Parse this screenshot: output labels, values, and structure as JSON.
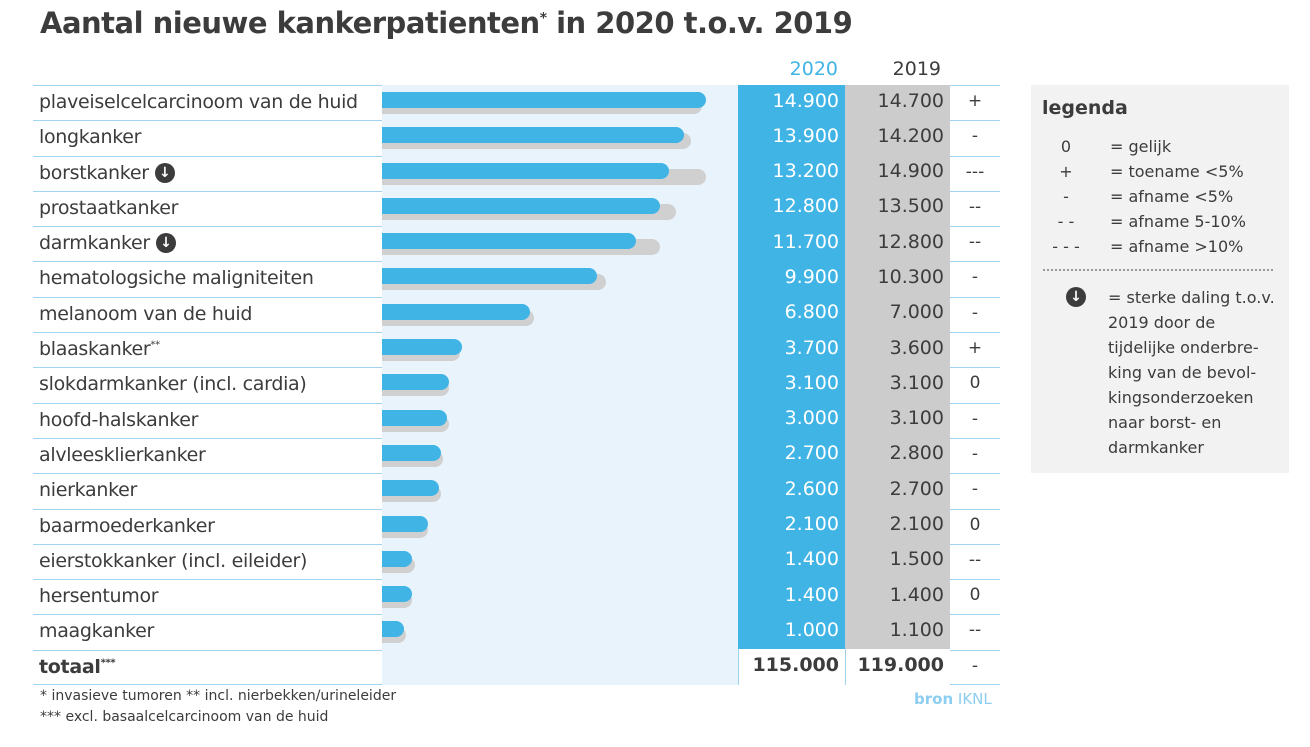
{
  "title": "Aantal nieuwe kankerpatienten",
  "title_sup": "*",
  "title_rest": " in 2020 t.o.v. 2019",
  "colors": {
    "bar_2020": "#41b4e6",
    "bar_2019": "#d0d0d0",
    "col_2019": "#cccccc",
    "bar_bg": "#e8f3fc"
  },
  "chart_data": {
    "type": "bar",
    "orientation": "horizontal",
    "series_names": [
      "2020",
      "2019"
    ],
    "categories": [
      "plaveiselcelcarcinoom van de huid",
      "longkanker",
      "borstkanker",
      "prostaatkanker",
      "darmkanker",
      "hematologsiche maligniteiten",
      "melanoom van de huid",
      "blaaskanker",
      "slokdarmkanker (incl. cardia)",
      "hoofd-halskanker",
      "alvleesklierkanker",
      "nierkanker",
      "baarmoederkanker",
      "eierstokkanker (incl. eileider)",
      "hersentumor",
      "maagkanker"
    ],
    "category_sup": [
      "",
      "",
      "",
      "",
      "",
      "",
      "",
      "**",
      "",
      "",
      "",
      "",
      "",
      "",
      "",
      ""
    ],
    "strong_decline": [
      false,
      false,
      true,
      false,
      true,
      false,
      false,
      false,
      false,
      false,
      false,
      false,
      false,
      false,
      false,
      false
    ],
    "values_2020": [
      14900,
      13900,
      13200,
      12800,
      11700,
      9900,
      6800,
      3700,
      3100,
      3000,
      2700,
      2600,
      2100,
      1400,
      1400,
      1000
    ],
    "values_2019": [
      14700,
      14200,
      14900,
      13500,
      12800,
      10300,
      7000,
      3600,
      3100,
      3100,
      2800,
      2700,
      2100,
      1500,
      1400,
      1100
    ],
    "labels_2020": [
      "14.900",
      "13.900",
      "13.200",
      "12.800",
      "11.700",
      "9.900",
      "6.800",
      "3.700",
      "3.100",
      "3.000",
      "2.700",
      "2.600",
      "2.100",
      "1.400",
      "1.400",
      "1.000"
    ],
    "labels_2019": [
      "14.700",
      "14.200",
      "14.900",
      "13.500",
      "12.800",
      "10.300",
      "7.000",
      "3.600",
      "3.100",
      "3.100",
      "2.800",
      "2.700",
      "2.100",
      "1.500",
      "1.400",
      "1.100"
    ],
    "trend": [
      "+",
      "-",
      "---",
      "--",
      "--",
      "-",
      "-",
      "+",
      "0",
      "-",
      "-",
      "-",
      "0",
      "--",
      "0",
      "--"
    ],
    "total": {
      "label": "totaal",
      "sup": "***",
      "v2020": "115.000",
      "v2019": "119.000",
      "trend": "-"
    },
    "xlim": [
      0,
      15000
    ]
  },
  "header": {
    "y2020": "2020",
    "y2019": "2019"
  },
  "legend": {
    "title": "legenda",
    "items": [
      {
        "s": "0",
        "t": "= gelijk"
      },
      {
        "s": "+",
        "t": "= toename <5%"
      },
      {
        "s": "-",
        "t": "= afname <5%"
      },
      {
        "s": "- -",
        "t": "= afname 5-10%"
      },
      {
        "s": "- - -",
        "t": "= afname >10%"
      }
    ],
    "arrow_note": "= sterke daling t.o.v. 2019 door de tijdelijke onderbre-king van de bevol-kingsonderzoeken naar borst- en darmkanker"
  },
  "footnotes": [
    "* invasieve tumoren ** incl. nierbekken/urineleider",
    "*** excl. basaalcelcarcinoom van de huid"
  ],
  "source": {
    "bron": "bron",
    "name": "IKNL"
  }
}
